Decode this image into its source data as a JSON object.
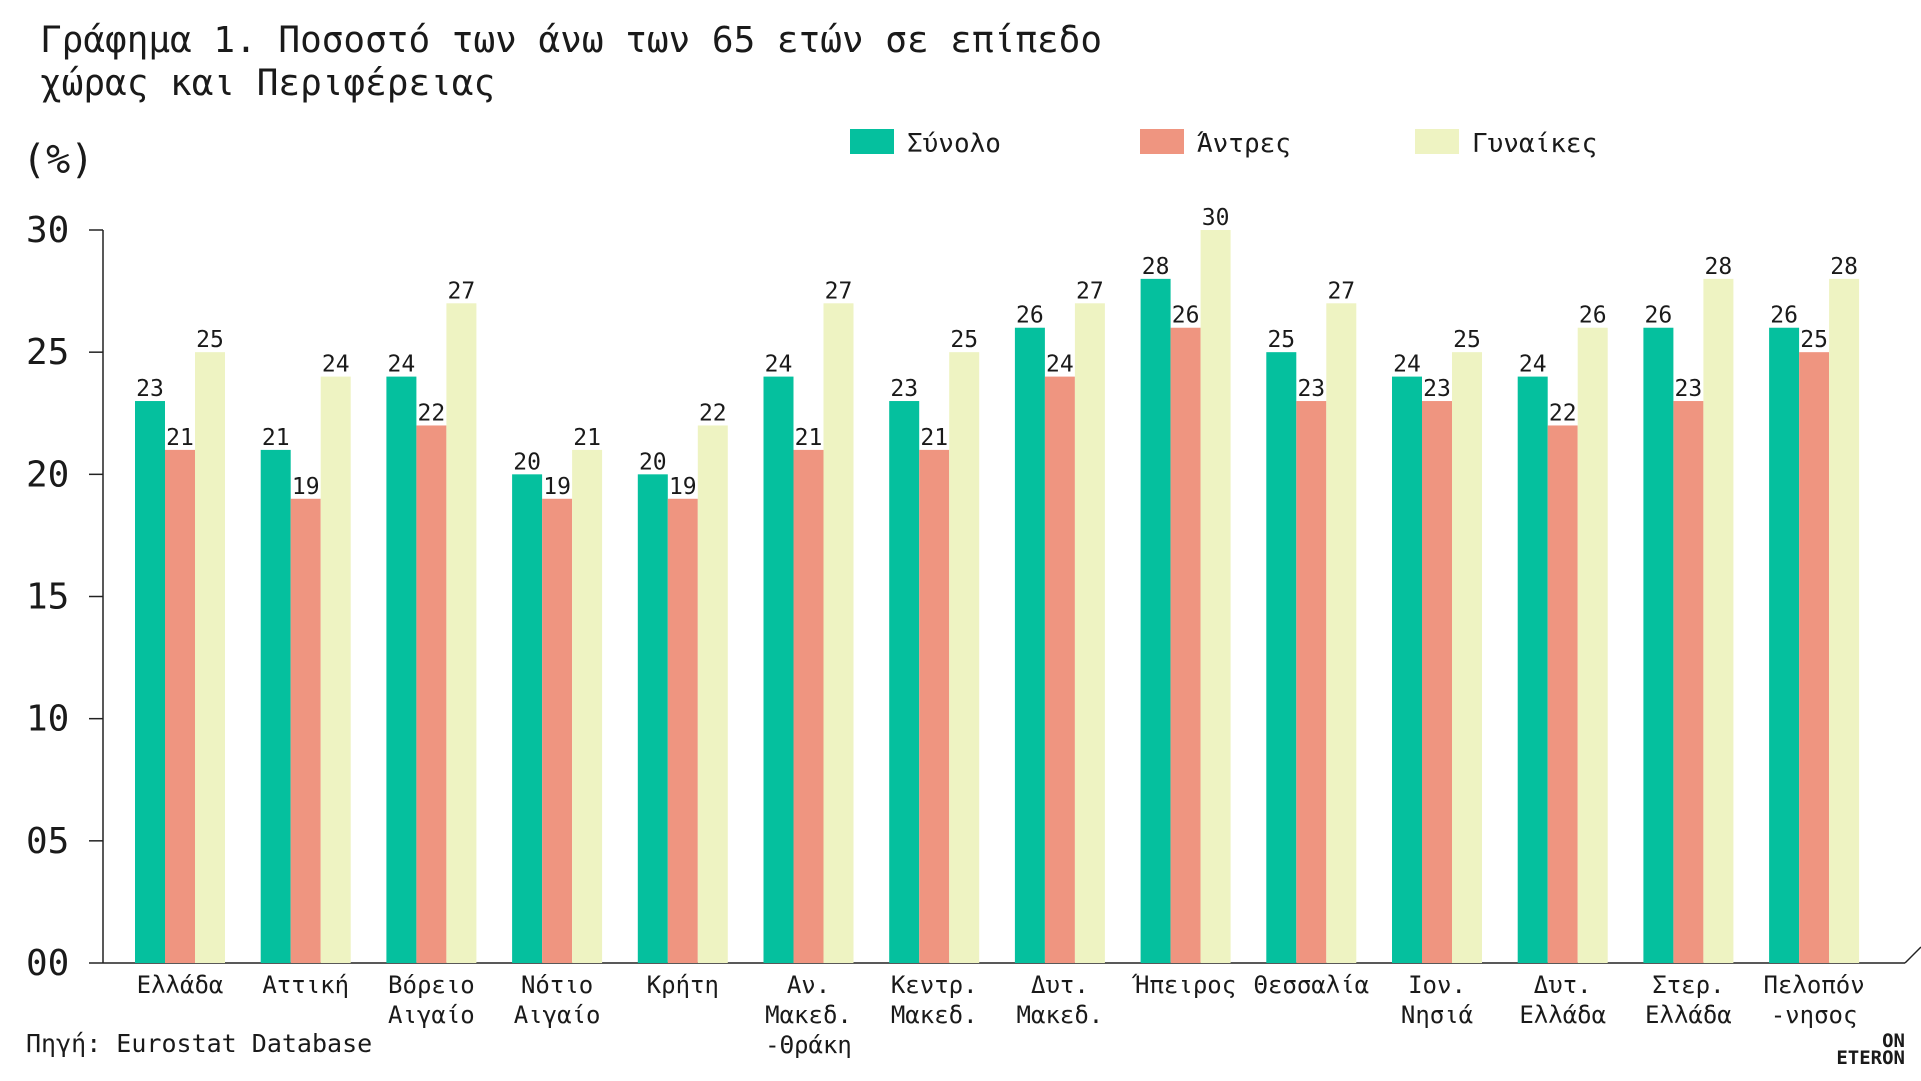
{
  "title": [
    "Γράφημα 1. Ποσοστό των άνω των 65 ετών σε επίπεδο",
    "χώρας και Περιφέρειας"
  ],
  "unit_label": "(%)",
  "source": "Πηγή: Eurostat Database",
  "logo": {
    "line1": "ON",
    "line2": "ETERON"
  },
  "colors": {
    "total": "#05c09e",
    "men": "#ef9580",
    "women": "#eef3c2",
    "axis": "#222222",
    "text": "#1a1a1a"
  },
  "chart_data": {
    "type": "bar",
    "title": "Γράφημα 1. Ποσοστό των άνω των 65 ετών σε επίπεδο χώρας και Περιφέρειας",
    "ylabel": "(%)",
    "ylim": [
      0,
      30
    ],
    "yticks": [
      "00",
      "05",
      "10",
      "15",
      "20",
      "25",
      "30"
    ],
    "grid": false,
    "legend_position": "top",
    "categories": [
      [
        "Ελλάδα"
      ],
      [
        "Αττική"
      ],
      [
        "Βόρειο",
        "Αιγαίο"
      ],
      [
        "Νότιο",
        "Αιγαίο"
      ],
      [
        "Κρήτη"
      ],
      [
        "Αν.",
        "Μακεδ.",
        "-Θράκη"
      ],
      [
        "Κεντρ.",
        "Μακεδ."
      ],
      [
        "Δυτ.",
        "Μακεδ."
      ],
      [
        "Ήπειρος"
      ],
      [
        "Θεσσαλία"
      ],
      [
        "Ιον.",
        "Νησιά"
      ],
      [
        "Δυτ.",
        "Ελλάδα"
      ],
      [
        "Στερ.",
        "Ελλάδα"
      ],
      [
        "Πελοπόν",
        "-νησος"
      ]
    ],
    "series": [
      {
        "name": "Σύνολο",
        "color": "#05c09e",
        "values": [
          23,
          21,
          24,
          20,
          20,
          24,
          23,
          26,
          28,
          25,
          24,
          24,
          26,
          26
        ]
      },
      {
        "name": "Άντρες",
        "color": "#ef9580",
        "values": [
          21,
          19,
          22,
          19,
          19,
          21,
          21,
          24,
          26,
          23,
          23,
          22,
          23,
          25
        ]
      },
      {
        "name": "Γυναίκες",
        "color": "#eef3c2",
        "values": [
          25,
          24,
          27,
          21,
          22,
          27,
          25,
          27,
          30,
          27,
          25,
          26,
          28,
          28
        ]
      }
    ]
  }
}
